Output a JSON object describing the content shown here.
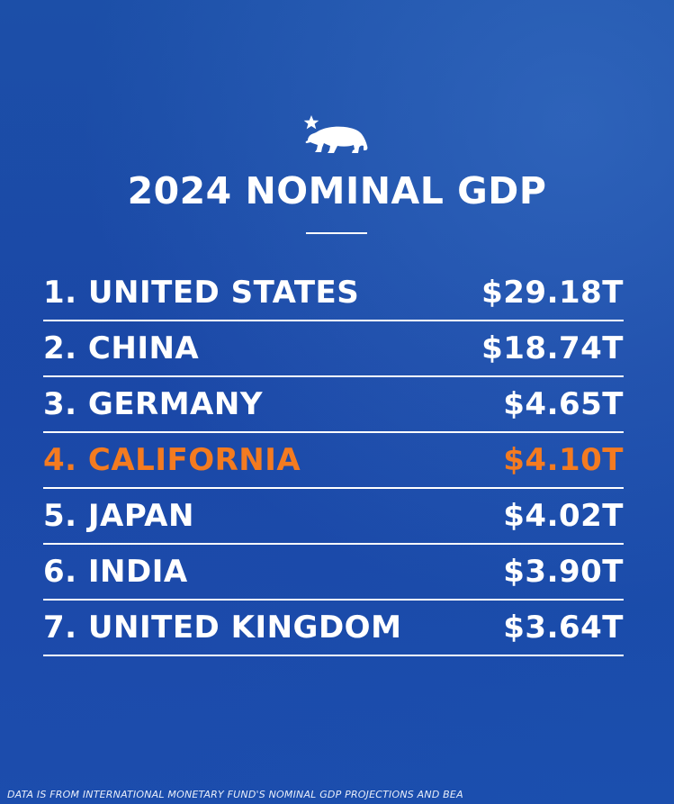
{
  "emblem": {
    "icon": "california-bear-star-icon"
  },
  "chart_data": {
    "type": "table",
    "title": "2024 NOMINAL GDP",
    "columns": [
      "",
      ""
    ],
    "rows": [
      {
        "label": "1. UNITED STATES",
        "value": "$29.18T",
        "value_trillions": 29.18,
        "highlight": false
      },
      {
        "label": "2. CHINA",
        "value": "$18.74T",
        "value_trillions": 18.74,
        "highlight": false
      },
      {
        "label": "3. GERMANY",
        "value": "$4.65T",
        "value_trillions": 4.65,
        "highlight": false
      },
      {
        "label": "4. CALIFORNIA",
        "value": "$4.10T",
        "value_trillions": 4.1,
        "highlight": true
      },
      {
        "label": "5. JAPAN",
        "value": "$4.02T",
        "value_trillions": 4.02,
        "highlight": false
      },
      {
        "label": "6. INDIA",
        "value": "$3.90T",
        "value_trillions": 3.9,
        "highlight": false
      },
      {
        "label": "7. UNITED KINGDOM",
        "value": "$3.64T",
        "value_trillions": 3.64,
        "highlight": false
      }
    ],
    "source": "DATA IS FROM INTERNATIONAL MONETARY FUND'S NOMINAL GDP PROJECTIONS AND BEA"
  },
  "colors": {
    "background": "#1b4ba8",
    "text": "#ffffff",
    "highlight": "#f47b20"
  }
}
